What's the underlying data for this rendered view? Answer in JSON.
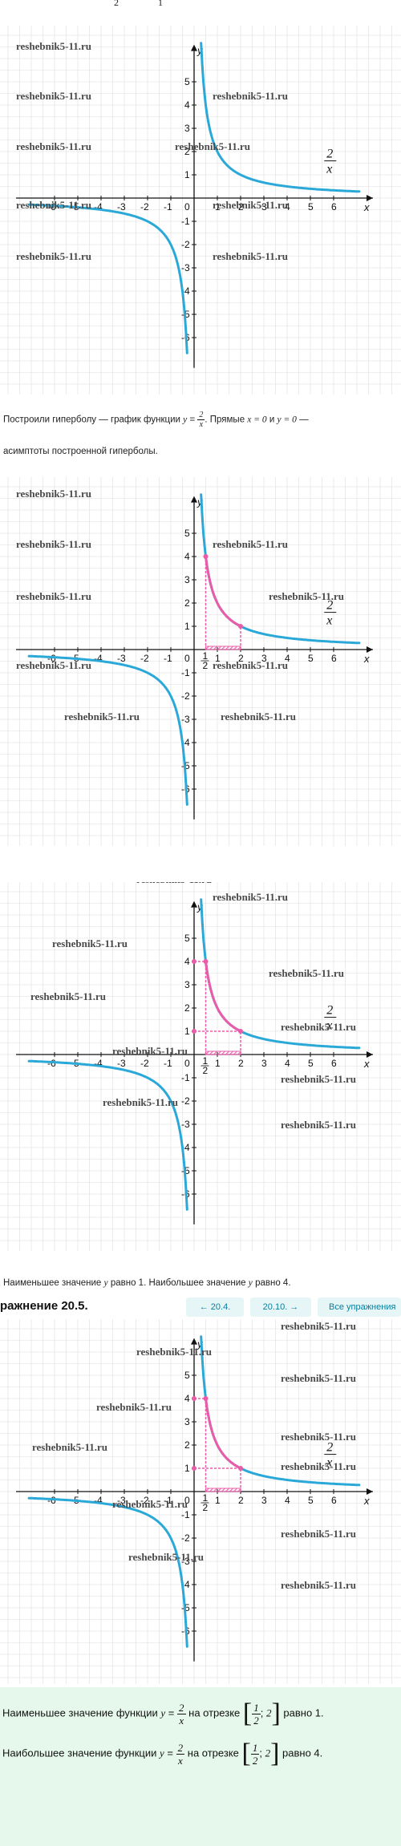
{
  "top_fragment": {
    "left": "2",
    "right": "1"
  },
  "watermark": "reshebnik5-11.ru",
  "graph_labels": {
    "y_axis": "y",
    "x_axis": "x",
    "x_ticks": [
      "-6",
      "-5",
      "-4",
      "-3",
      "-2",
      "-1",
      "0",
      "1",
      "2",
      "3",
      "4",
      "5",
      "6"
    ],
    "y_ticks": [
      "5",
      "4",
      "3",
      "2",
      "1",
      "-1",
      "-2",
      "-3",
      "-4",
      "-5",
      "-6"
    ],
    "fn_num": "2",
    "fn_den": "x",
    "half_num": "1",
    "half_den": "2"
  },
  "colors": {
    "curve": "#2aa8d8",
    "highlight": "#ea5ba8",
    "answer_bg": "#e6f8ec",
    "button_bg": "#e6f6f7"
  },
  "para1": {
    "line1_a": "Построили гиперболу — график функции",
    "var_y": "y",
    "eq": "=",
    "frac_num": "2",
    "frac_den": "x",
    "line1_b": ". Прямые",
    "x0": "x = 0",
    "and": "и",
    "y0": "y = 0",
    "dash": "—",
    "line2": "асимптоты построенной гиперболы."
  },
  "para2": {
    "a": "Наименьшее значение",
    "var": "y",
    "b": "равно 1. Наибольшее значение",
    "c": "равно 4."
  },
  "nav": {
    "title": "ражнение 20.5.",
    "prev": "← 20.4.",
    "next": "20.10. →",
    "all": "Все упражнения"
  },
  "answer": {
    "l1_a": "Наименьшее значение функции",
    "l1_b": "на отрезке",
    "l1_c": "равно 1.",
    "l2_a": "Наибольшее значение функции",
    "l2_b": "на отрезке",
    "l2_c": "равно 4.",
    "var_y": "y",
    "eq": "=",
    "frac_num": "2",
    "frac_den": "x",
    "seg_num": "1",
    "seg_den": "2",
    "seg_sep": ";",
    "seg_right": "2"
  }
}
